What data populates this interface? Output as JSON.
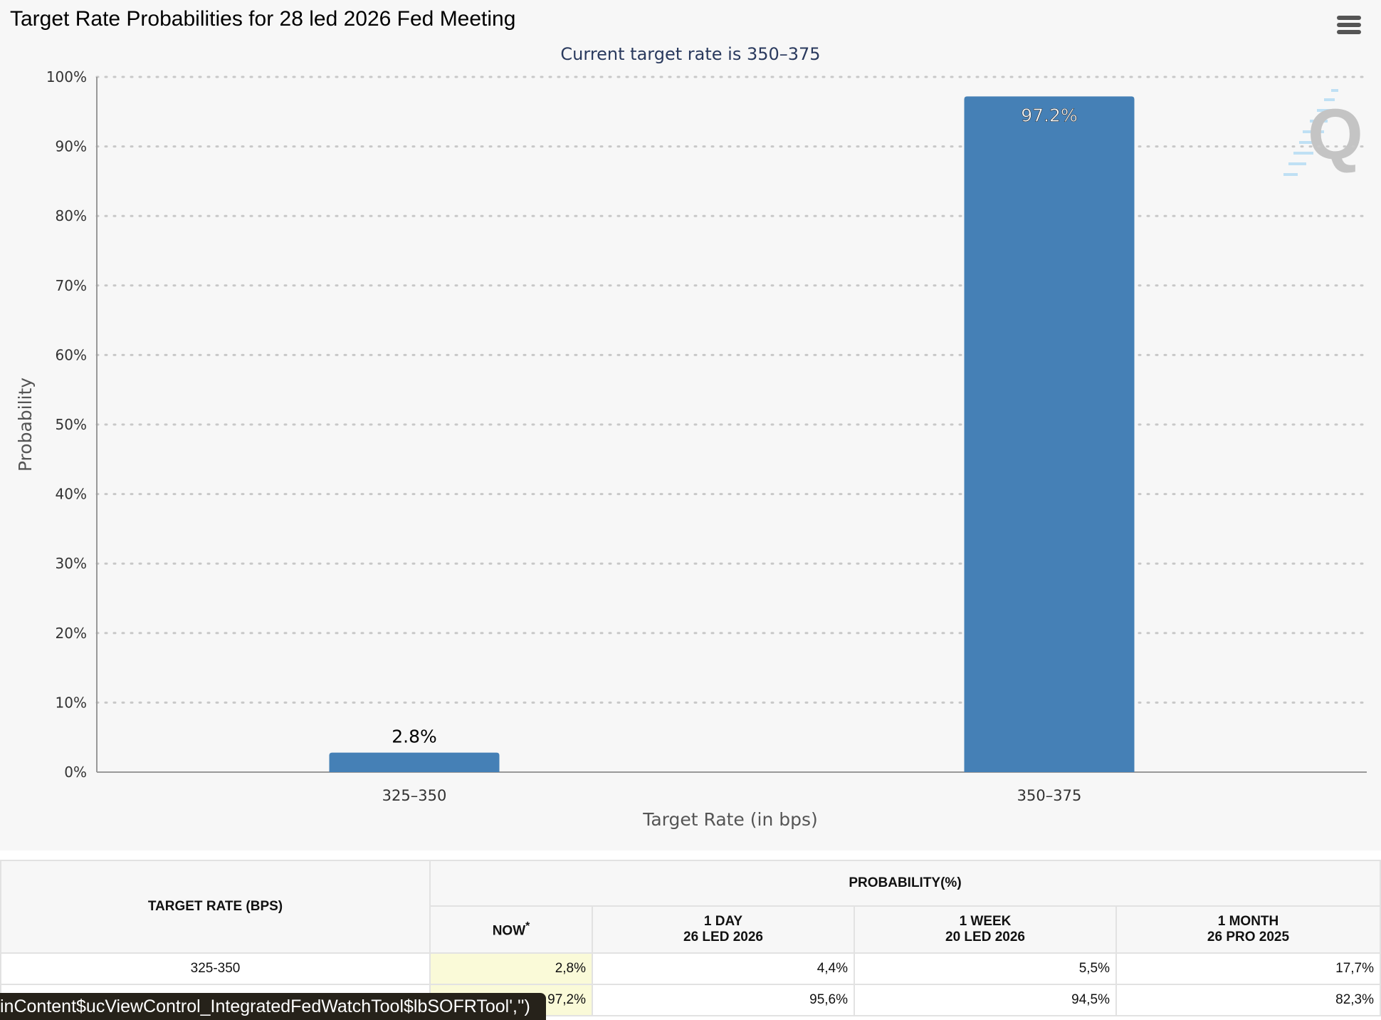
{
  "chart_data": {
    "type": "bar",
    "title": "Target Rate Probabilities for 28 led 2026 Fed Meeting",
    "subtitle": "Current target rate is 350–375",
    "categories": [
      "325–350",
      "350–375"
    ],
    "values": [
      2.8,
      97.2
    ],
    "data_labels": [
      "2.8%",
      "97.2%"
    ],
    "xlabel": "Target Rate (in bps)",
    "ylabel": "Probability",
    "ylim": [
      0,
      100
    ],
    "yticks": [
      "0%",
      "10%",
      "20%",
      "30%",
      "40%",
      "50%",
      "60%",
      "70%",
      "80%",
      "90%",
      "100%"
    ],
    "grid": true,
    "bar_color": "#4580b6"
  },
  "header": {
    "menu_icon": "hamburger-menu-icon",
    "logo": "Q"
  },
  "table": {
    "col_rate": "TARGET RATE (BPS)",
    "col_prob": "PROBABILITY(%)",
    "sub": [
      {
        "l1": "NOW",
        "sup": "*",
        "l2": ""
      },
      {
        "l1": "1 DAY",
        "l2": "26 LED 2026"
      },
      {
        "l1": "1 WEEK",
        "l2": "20 LED 2026"
      },
      {
        "l1": "1 MONTH",
        "l2": "26 PRO 2025"
      }
    ],
    "rows": [
      {
        "rate": "325-350",
        "vals": [
          "2,8%",
          "4,4%",
          "5,5%",
          "17,7%"
        ]
      },
      {
        "rate": "",
        "vals": [
          "97,2%",
          "95,6%",
          "94,5%",
          "82,3%"
        ]
      }
    ]
  },
  "tooltip": "inContent$ucViewControl_IntegratedFedWatchTool$lbSOFRTool','')"
}
